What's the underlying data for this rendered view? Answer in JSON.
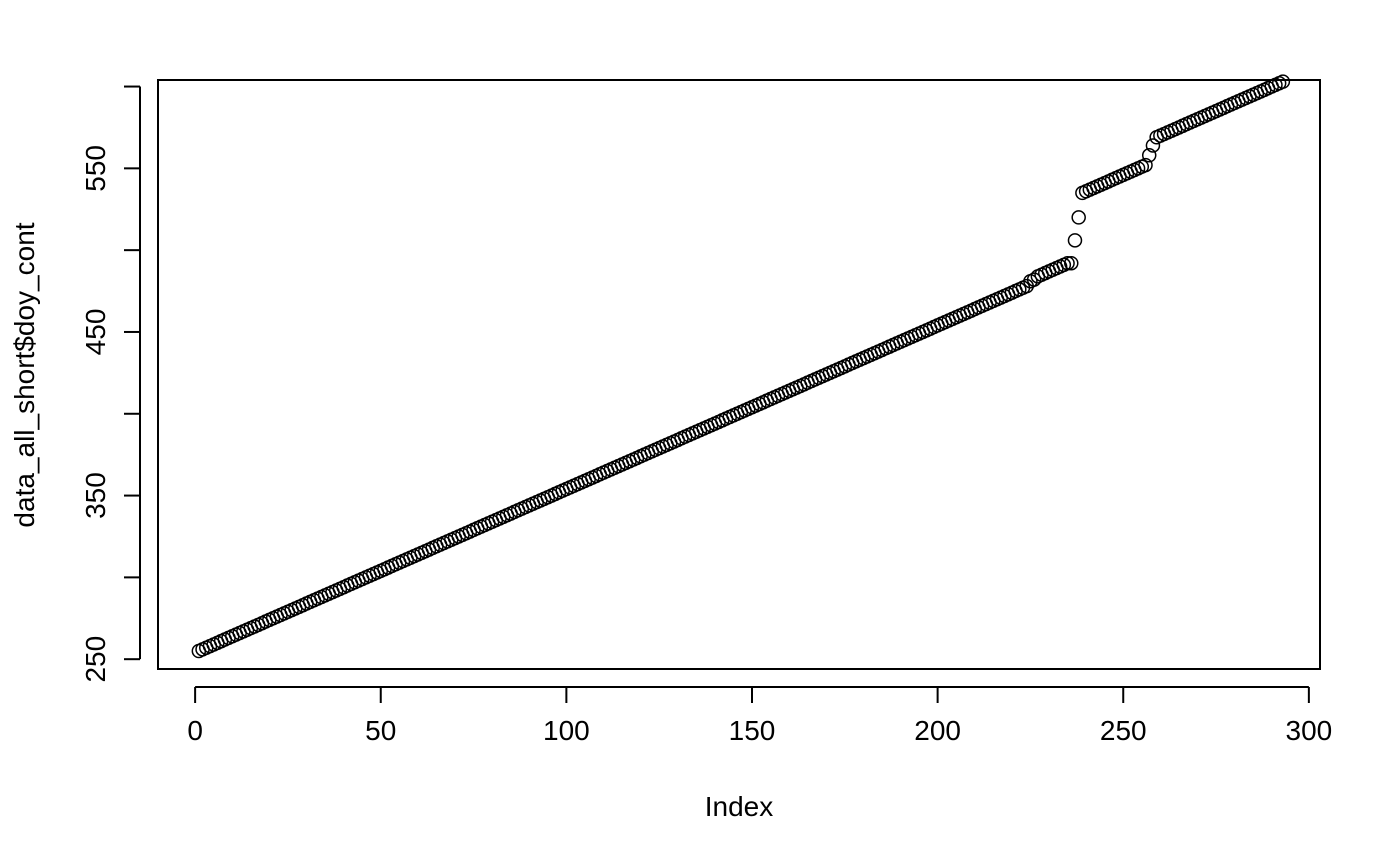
{
  "chart_data": {
    "type": "scatter",
    "title": "",
    "xlabel": "Index",
    "ylabel": "data_all_short$doy_cont",
    "xlim": [
      -10,
      303
    ],
    "ylim": [
      244,
      604
    ],
    "x_ticks": [
      0,
      50,
      100,
      150,
      200,
      250,
      300
    ],
    "y_ticks": [
      250,
      300,
      350,
      400,
      450,
      500,
      550,
      600
    ],
    "y_tick_labels": [
      "250",
      "",
      "350",
      "",
      "450",
      "",
      "550",
      ""
    ],
    "grid": false,
    "legend": "none",
    "marker": "open-circle",
    "series": [
      {
        "x_start": 1,
        "segments": [
          {
            "count": 1,
            "values": [
              255
            ]
          },
          {
            "linear_from": 256,
            "count": 223,
            "step": 1
          },
          {
            "values": [
              481,
              482,
              484,
              485,
              486,
              487,
              488,
              489,
              490,
              491,
              492,
              492,
              506,
              520,
              535,
              536,
              537,
              538,
              539,
              540,
              541,
              542,
              543,
              544,
              545,
              546,
              547,
              548,
              549,
              550,
              551,
              552,
              558,
              564,
              569,
              570
            ]
          },
          {
            "linear_from": 571,
            "count": 33,
            "step": 1
          }
        ]
      }
    ]
  }
}
